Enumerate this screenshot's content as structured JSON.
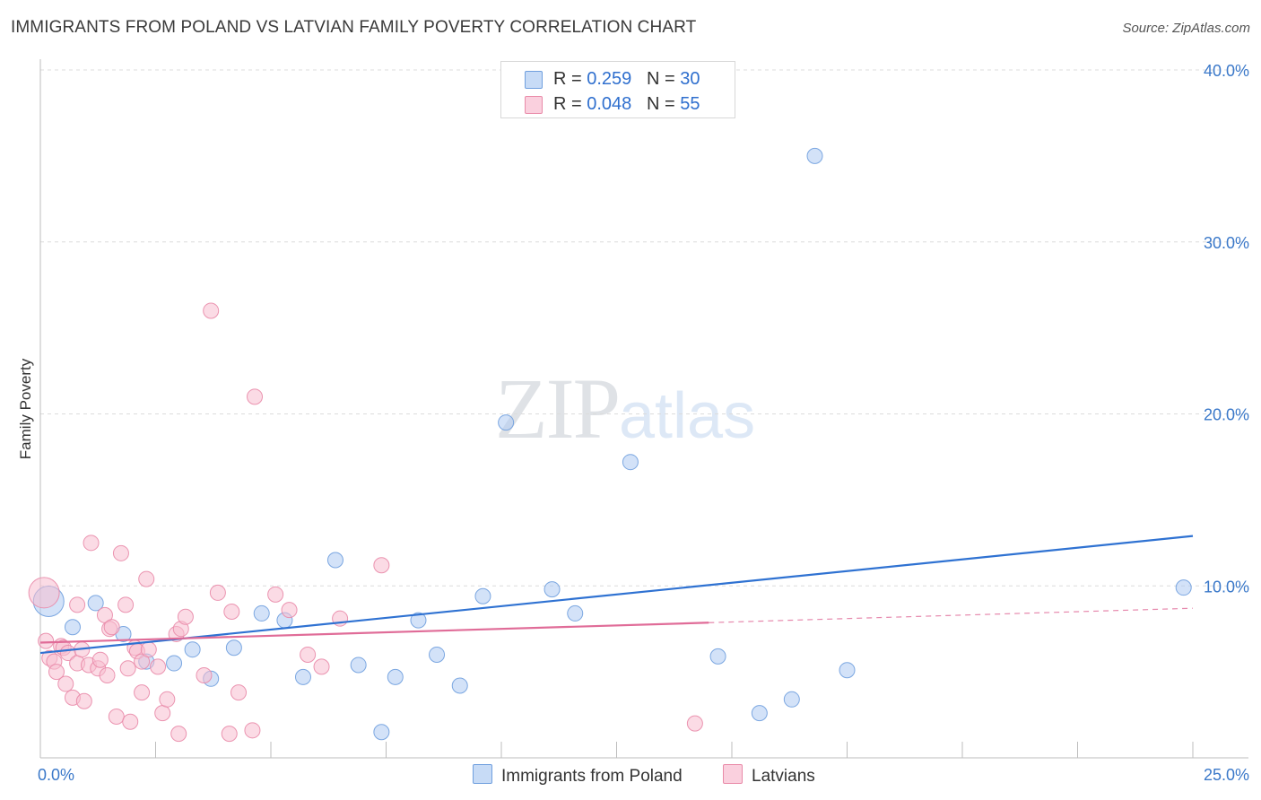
{
  "header": {
    "title": "IMMIGRANTS FROM POLAND VS LATVIAN FAMILY POVERTY CORRELATION CHART",
    "source": "Source: ZipAtlas.com"
  },
  "legend": {
    "rows": [
      {
        "r_label": "R = ",
        "r_value": "0.259",
        "n_label": "N = ",
        "n_value": "30"
      },
      {
        "r_label": "R = ",
        "r_value": "0.048",
        "n_label": "N = ",
        "n_value": "55"
      }
    ],
    "bottom": [
      "Immigrants from Poland",
      "Latvians"
    ]
  },
  "watermark": {
    "zip": "ZIP",
    "atlas": "atlas"
  },
  "colors": {
    "blue_fill": "#aecbf2",
    "blue_stroke": "#6f9fde",
    "blue_line": "#2f72d2",
    "pink_fill": "#f7bdd0",
    "pink_stroke": "#e98aa8",
    "pink_line": "#e06c98",
    "grid": "#dcdcdc",
    "tick_text": "#3a78c9"
  },
  "chart_data": {
    "type": "scatter",
    "title": "IMMIGRANTS FROM POLAND VS LATVIAN FAMILY POVERTY CORRELATION CHART",
    "xlabel": "",
    "ylabel": "Family Poverty",
    "xlim": [
      0,
      25
    ],
    "ylim": [
      0,
      40
    ],
    "x_tick_labels": [
      {
        "value": 0,
        "label": "0.0%"
      },
      {
        "value": 25,
        "label": "25.0%"
      }
    ],
    "y_tick_labels": [
      {
        "value": 10,
        "label": "10.0%"
      },
      {
        "value": 20,
        "label": "20.0%"
      },
      {
        "value": 30,
        "label": "30.0%"
      },
      {
        "value": 40,
        "label": "40.0%"
      }
    ],
    "series": [
      {
        "name": "Immigrants from Poland",
        "color": "blue",
        "R": 0.259,
        "N": 30,
        "trend": {
          "x0": 0,
          "y0": 6.1,
          "x1": 25,
          "y1": 12.9,
          "dashed_from": null
        },
        "points": [
          {
            "x": 0.18,
            "y": 9.1,
            "big": true
          },
          {
            "x": 0.7,
            "y": 7.6
          },
          {
            "x": 1.2,
            "y": 9.0
          },
          {
            "x": 1.8,
            "y": 7.2
          },
          {
            "x": 2.3,
            "y": 5.6
          },
          {
            "x": 2.9,
            "y": 5.5
          },
          {
            "x": 3.3,
            "y": 6.3
          },
          {
            "x": 3.7,
            "y": 4.6
          },
          {
            "x": 4.2,
            "y": 6.4
          },
          {
            "x": 4.8,
            "y": 8.4
          },
          {
            "x": 5.3,
            "y": 8.0
          },
          {
            "x": 5.7,
            "y": 4.7
          },
          {
            "x": 6.4,
            "y": 11.5
          },
          {
            "x": 6.9,
            "y": 5.4
          },
          {
            "x": 7.4,
            "y": 1.5
          },
          {
            "x": 7.7,
            "y": 4.7
          },
          {
            "x": 8.2,
            "y": 8.0
          },
          {
            "x": 8.6,
            "y": 6.0
          },
          {
            "x": 9.1,
            "y": 4.2
          },
          {
            "x": 9.6,
            "y": 9.4
          },
          {
            "x": 10.1,
            "y": 19.5
          },
          {
            "x": 11.1,
            "y": 9.8
          },
          {
            "x": 11.6,
            "y": 8.4
          },
          {
            "x": 12.8,
            "y": 17.2
          },
          {
            "x": 14.7,
            "y": 5.9
          },
          {
            "x": 15.6,
            "y": 2.6
          },
          {
            "x": 16.3,
            "y": 3.4
          },
          {
            "x": 16.8,
            "y": 35.0
          },
          {
            "x": 17.5,
            "y": 5.1
          },
          {
            "x": 24.8,
            "y": 9.9
          }
        ]
      },
      {
        "name": "Latvians",
        "color": "pink",
        "R": 0.048,
        "N": 55,
        "trend": {
          "x0": 0,
          "y0": 6.7,
          "x1": 25,
          "y1": 8.7,
          "dashed_from": 14.5
        },
        "points": [
          {
            "x": 0.08,
            "y": 9.6,
            "big": true
          },
          {
            "x": 0.12,
            "y": 6.8
          },
          {
            "x": 0.2,
            "y": 5.8
          },
          {
            "x": 0.3,
            "y": 5.6
          },
          {
            "x": 0.35,
            "y": 5.0
          },
          {
            "x": 0.45,
            "y": 6.5
          },
          {
            "x": 0.5,
            "y": 6.4
          },
          {
            "x": 0.55,
            "y": 4.3
          },
          {
            "x": 0.6,
            "y": 6.1
          },
          {
            "x": 0.7,
            "y": 3.5
          },
          {
            "x": 0.8,
            "y": 8.9
          },
          {
            "x": 0.8,
            "y": 5.5
          },
          {
            "x": 0.9,
            "y": 6.3
          },
          {
            "x": 0.95,
            "y": 3.3
          },
          {
            "x": 1.05,
            "y": 5.4
          },
          {
            "x": 1.1,
            "y": 12.5
          },
          {
            "x": 1.25,
            "y": 5.2
          },
          {
            "x": 1.3,
            "y": 5.7
          },
          {
            "x": 1.4,
            "y": 8.3
          },
          {
            "x": 1.45,
            "y": 4.8
          },
          {
            "x": 1.5,
            "y": 7.5
          },
          {
            "x": 1.55,
            "y": 7.6
          },
          {
            "x": 1.65,
            "y": 2.4
          },
          {
            "x": 1.75,
            "y": 11.9
          },
          {
            "x": 1.85,
            "y": 8.9
          },
          {
            "x": 1.9,
            "y": 5.2
          },
          {
            "x": 1.95,
            "y": 2.1
          },
          {
            "x": 2.05,
            "y": 6.4
          },
          {
            "x": 2.1,
            "y": 6.2
          },
          {
            "x": 2.2,
            "y": 5.6
          },
          {
            "x": 2.2,
            "y": 3.8
          },
          {
            "x": 2.3,
            "y": 10.4
          },
          {
            "x": 2.35,
            "y": 6.3
          },
          {
            "x": 2.55,
            "y": 5.3
          },
          {
            "x": 2.65,
            "y": 2.6
          },
          {
            "x": 2.75,
            "y": 3.4
          },
          {
            "x": 2.95,
            "y": 7.2
          },
          {
            "x": 3.0,
            "y": 1.4
          },
          {
            "x": 3.05,
            "y": 7.5
          },
          {
            "x": 3.15,
            "y": 8.2
          },
          {
            "x": 3.55,
            "y": 4.8
          },
          {
            "x": 3.7,
            "y": 26.0
          },
          {
            "x": 3.85,
            "y": 9.6
          },
          {
            "x": 4.1,
            "y": 1.4
          },
          {
            "x": 4.15,
            "y": 8.5
          },
          {
            "x": 4.3,
            "y": 3.8
          },
          {
            "x": 4.6,
            "y": 1.6
          },
          {
            "x": 4.65,
            "y": 21.0
          },
          {
            "x": 5.1,
            "y": 9.5
          },
          {
            "x": 5.4,
            "y": 8.6
          },
          {
            "x": 5.8,
            "y": 6.0
          },
          {
            "x": 6.1,
            "y": 5.3
          },
          {
            "x": 6.5,
            "y": 8.1
          },
          {
            "x": 7.4,
            "y": 11.2
          },
          {
            "x": 14.2,
            "y": 2.0
          }
        ]
      }
    ]
  }
}
